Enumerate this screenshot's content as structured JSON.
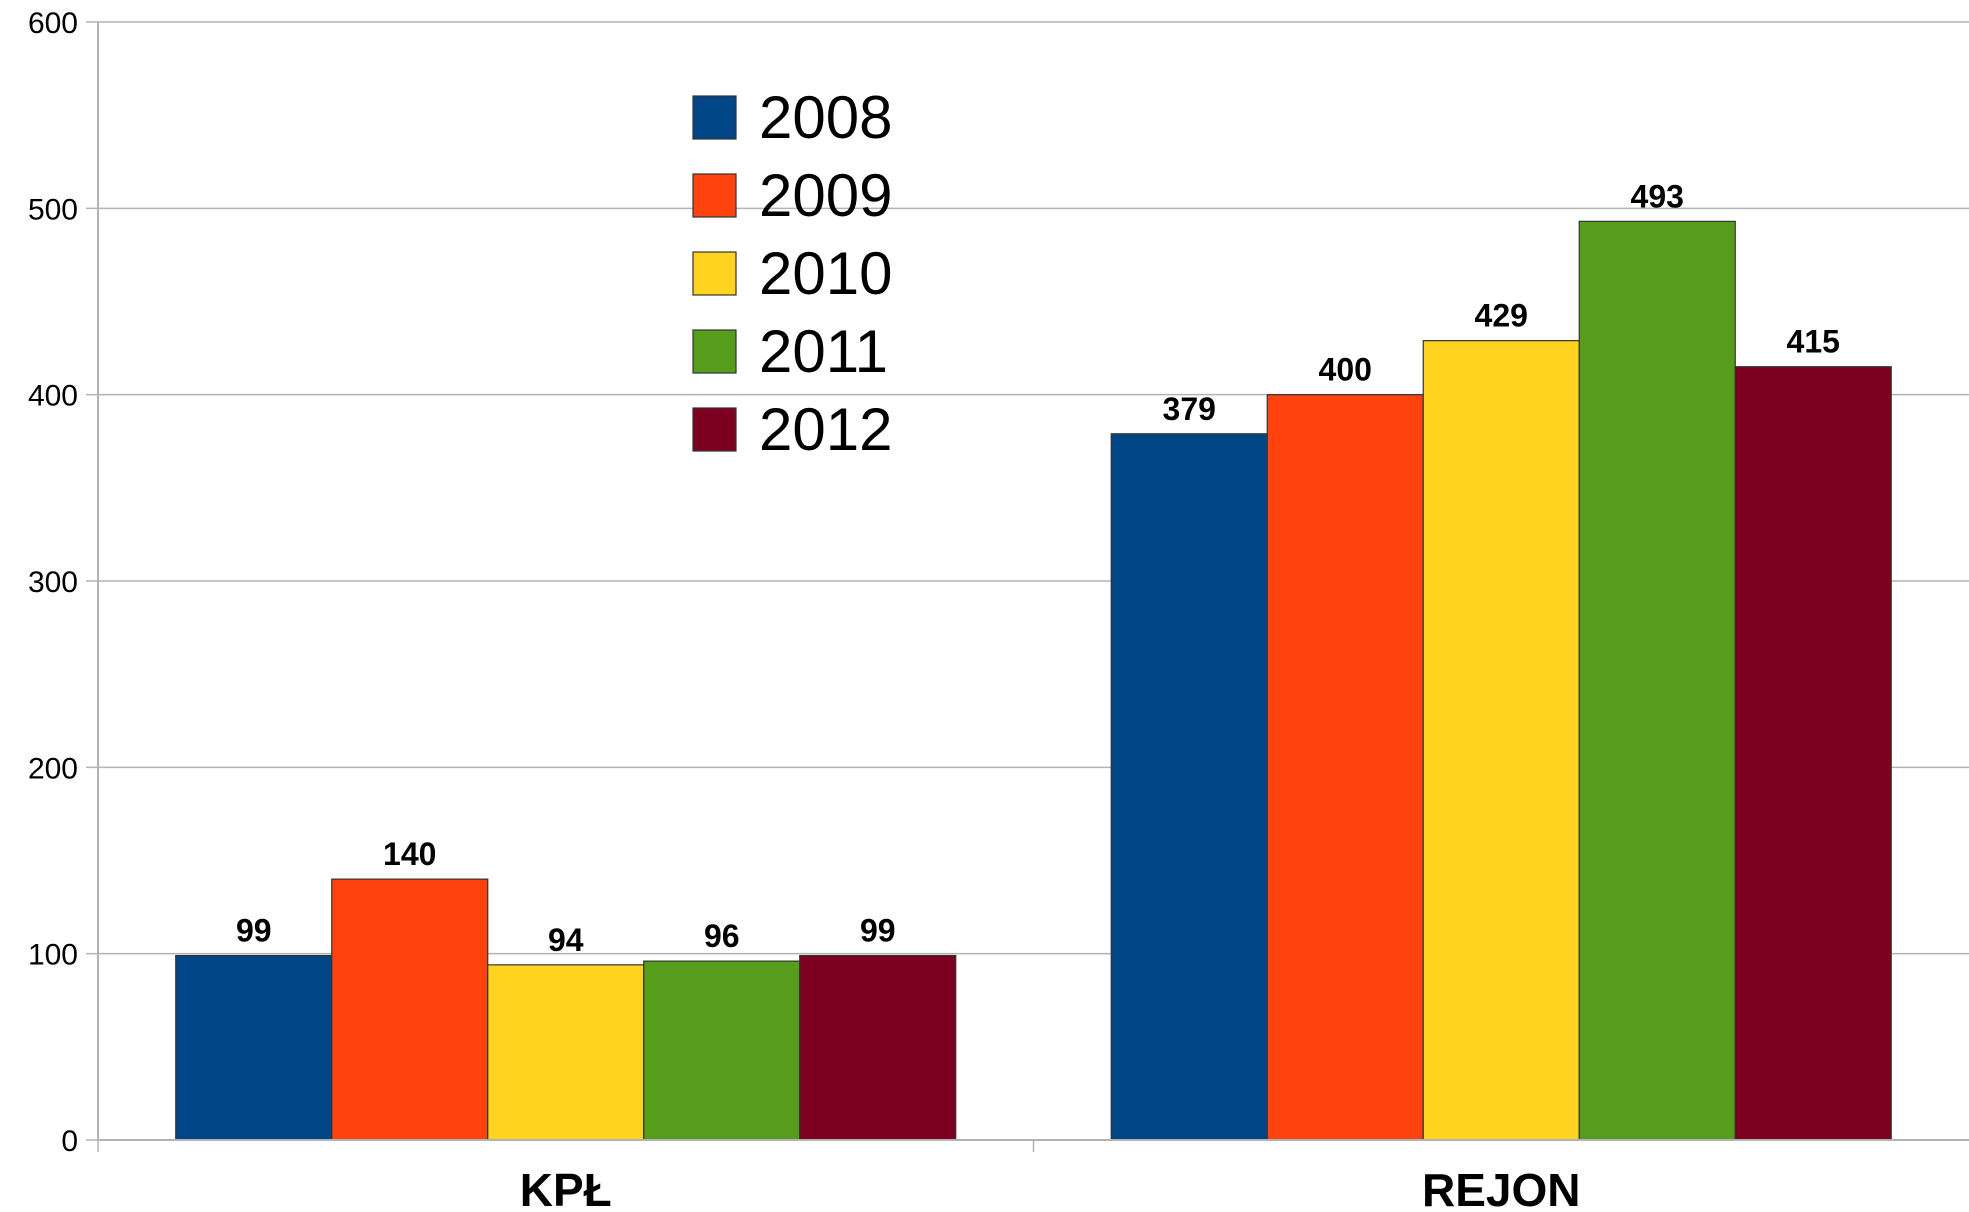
{
  "chart_data": {
    "type": "bar",
    "categories": [
      "KPŁ",
      "REJON"
    ],
    "series": [
      {
        "name": "2008",
        "color": "#004586",
        "values": [
          99,
          379
        ]
      },
      {
        "name": "2009",
        "color": "#ff420e",
        "values": [
          140,
          400
        ]
      },
      {
        "name": "2010",
        "color": "#ffd320",
        "values": [
          94,
          429
        ]
      },
      {
        "name": "2011",
        "color": "#579d1c",
        "values": [
          96,
          493
        ]
      },
      {
        "name": "2012",
        "color": "#7e0021",
        "values": [
          99,
          415
        ]
      }
    ],
    "title": "",
    "xlabel": "",
    "ylabel": "",
    "ylim": [
      0,
      600
    ],
    "yticks": [
      0,
      100,
      200,
      300,
      400,
      500,
      600
    ],
    "grid": true,
    "legend_position": "top-center",
    "data_labels": true
  }
}
